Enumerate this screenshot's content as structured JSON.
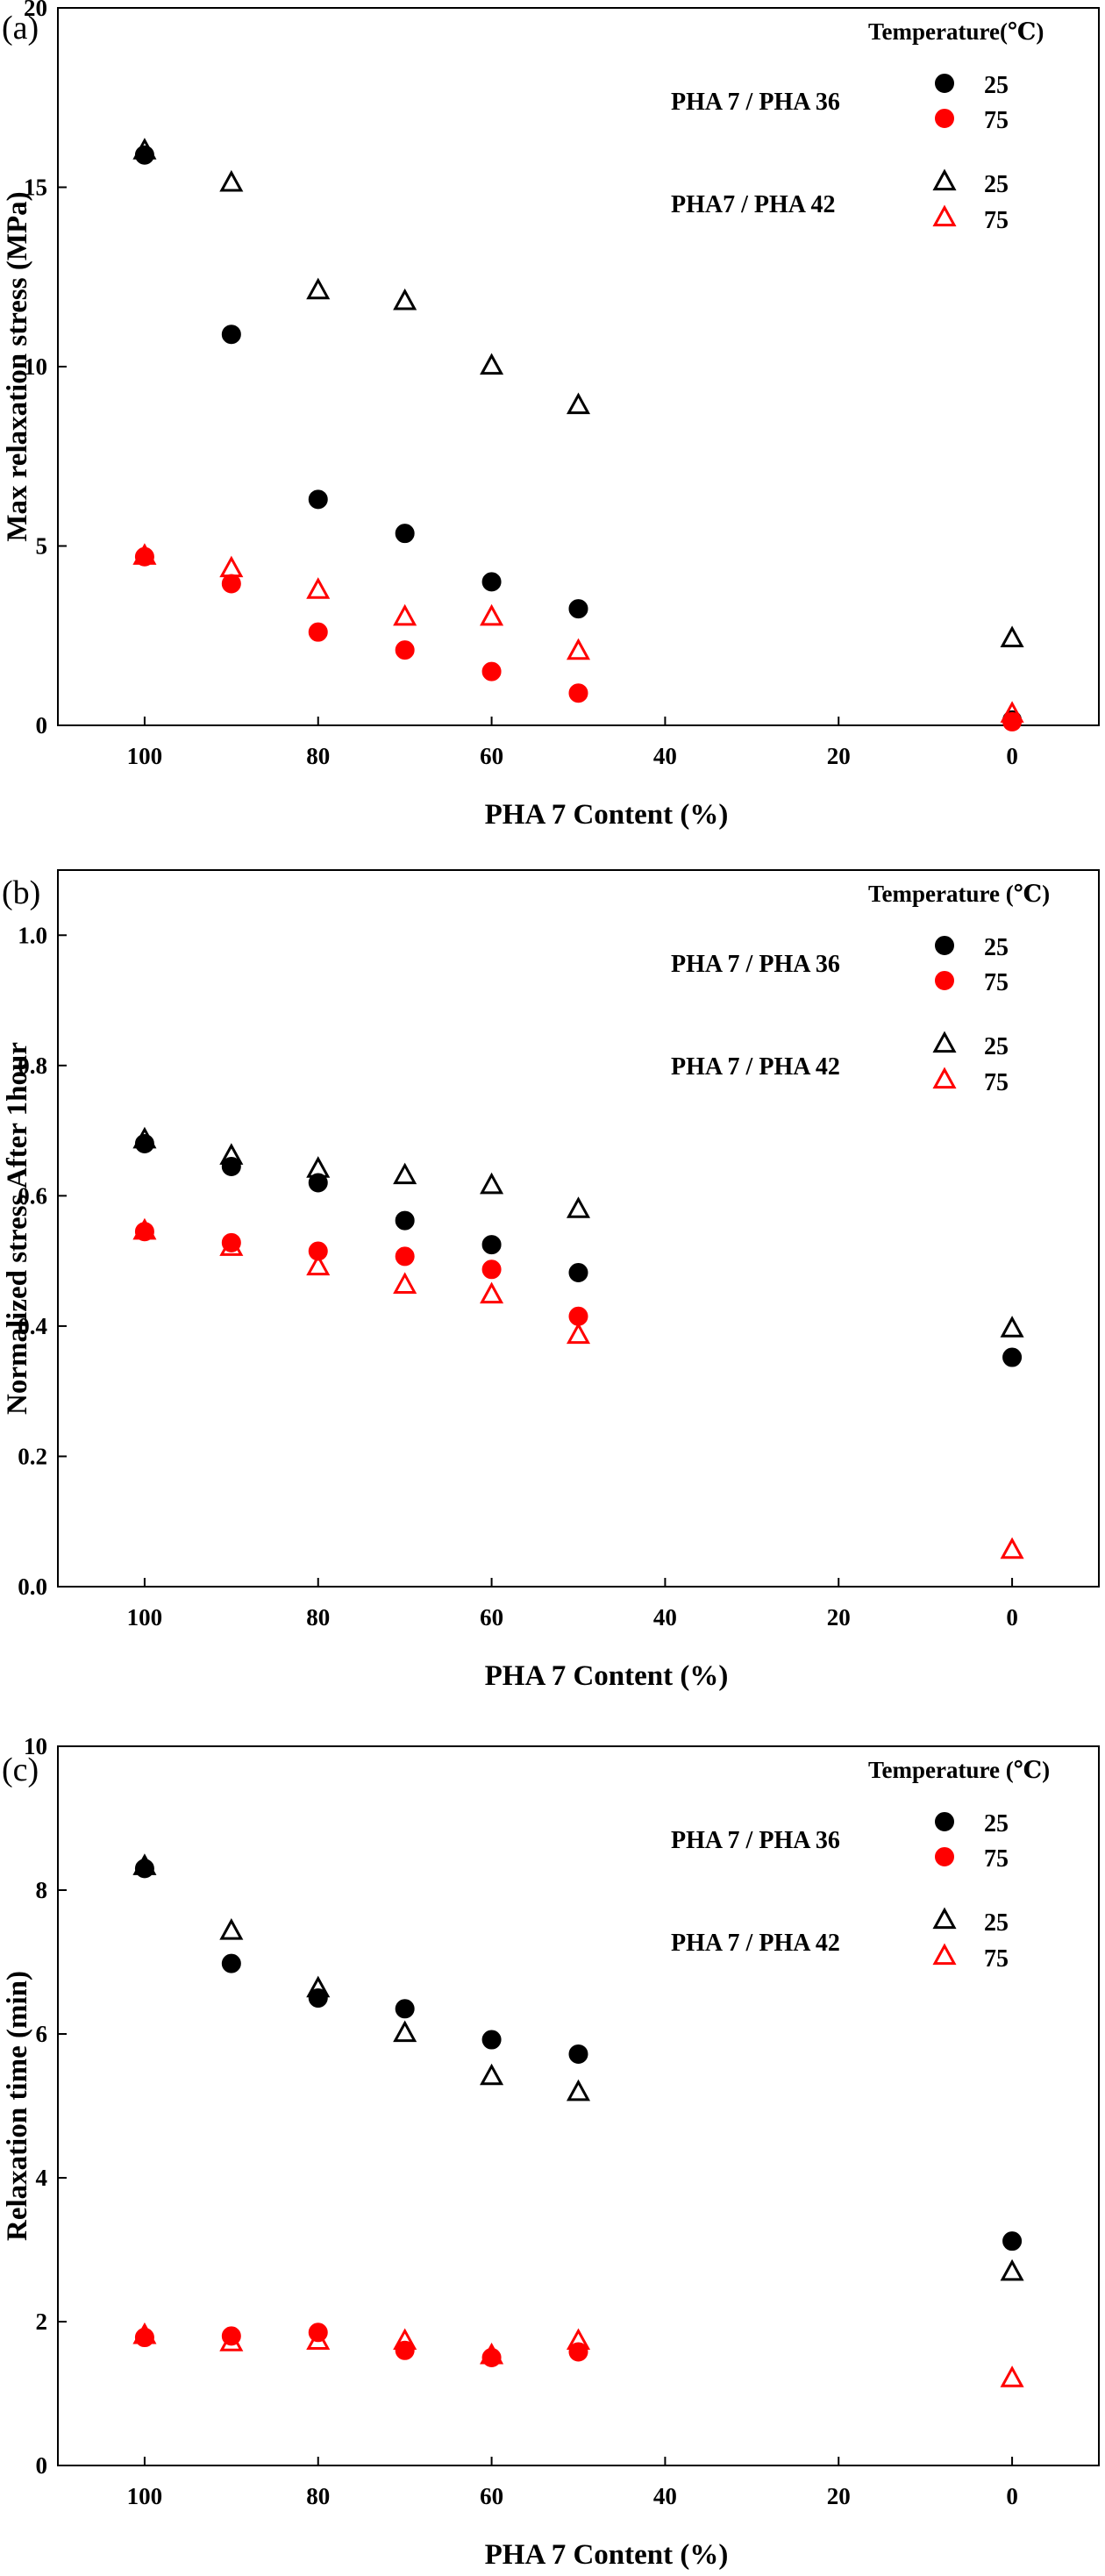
{
  "chart_data": [
    {
      "type": "scatter",
      "panel_label": "(a)",
      "xlabel": "PHA 7 Content (%)",
      "ylabel": "Max relaxation stress (MPa)",
      "xlim": [
        110,
        -10
      ],
      "ylim": [
        0,
        20
      ],
      "xticks": [
        "100",
        "80",
        "60",
        "40",
        "20",
        "0"
      ],
      "yticks": [
        "0",
        "5",
        "10",
        "15",
        "20"
      ],
      "legend_title": "Temperature(℃)",
      "legend_groups": [
        "PHA 7 / PHA 36",
        "PHA7 / PHA 42"
      ],
      "series": [
        {
          "name": "25",
          "group": "PHA 7 / PHA 36",
          "marker": "circle",
          "color": "#000000",
          "x": [
            100,
            90,
            80,
            70,
            60,
            50,
            0
          ],
          "y": [
            15.9,
            10.9,
            6.3,
            5.35,
            4.0,
            3.25,
            0.15
          ]
        },
        {
          "name": "75",
          "group": "PHA 7 / PHA 36",
          "marker": "circle",
          "color": "#ff0000",
          "x": [
            100,
            90,
            80,
            70,
            60,
            50,
            0
          ],
          "y": [
            4.7,
            3.95,
            2.6,
            2.1,
            1.5,
            0.9,
            0.1
          ]
        },
        {
          "name": "25",
          "group": "PHA7 / PHA 42",
          "marker": "triangle",
          "color": "#000000",
          "x": [
            100,
            90,
            80,
            70,
            60,
            50,
            0
          ],
          "y": [
            16.0,
            15.1,
            12.1,
            11.8,
            10.0,
            8.9,
            2.4
          ]
        },
        {
          "name": "75",
          "group": "PHA7 / PHA 42",
          "marker": "triangle",
          "color": "#ff0000",
          "x": [
            100,
            90,
            80,
            70,
            60,
            50,
            0
          ],
          "y": [
            4.7,
            4.35,
            3.75,
            3.0,
            3.0,
            2.05,
            0.3
          ]
        }
      ]
    },
    {
      "type": "scatter",
      "panel_label": "(b)",
      "xlabel": "PHA 7 Content (%)",
      "ylabel": "Normalized stress After 1hour",
      "xlim": [
        110,
        -10
      ],
      "ylim": [
        0,
        1.1
      ],
      "xticks": [
        "100",
        "80",
        "60",
        "40",
        "20",
        "0"
      ],
      "yticks": [
        "0.0",
        "0.2",
        "0.4",
        "0.6",
        "0.8",
        "1.0"
      ],
      "legend_title": "Temperature (℃)",
      "legend_groups": [
        "PHA 7 / PHA 36",
        "PHA 7 / PHA 42"
      ],
      "series": [
        {
          "name": "25",
          "group": "PHA 7 / PHA 36",
          "marker": "circle",
          "color": "#000000",
          "x": [
            100,
            90,
            80,
            70,
            60,
            50,
            0
          ],
          "y": [
            0.68,
            0.645,
            0.62,
            0.562,
            0.525,
            0.482,
            0.352
          ]
        },
        {
          "name": "75",
          "group": "PHA 7 / PHA 36",
          "marker": "circle",
          "color": "#ff0000",
          "x": [
            100,
            90,
            80,
            70,
            60,
            50
          ],
          "y": [
            0.545,
            0.528,
            0.515,
            0.507,
            0.487,
            0.415
          ]
        },
        {
          "name": "25",
          "group": "PHA 7 / PHA 42",
          "marker": "triangle",
          "color": "#000000",
          "x": [
            100,
            90,
            80,
            70,
            60,
            50,
            0
          ],
          "y": [
            0.685,
            0.66,
            0.64,
            0.63,
            0.615,
            0.578,
            0.395
          ]
        },
        {
          "name": "75",
          "group": "PHA 7 / PHA 42",
          "marker": "triangle",
          "color": "#ff0000",
          "x": [
            100,
            90,
            80,
            70,
            60,
            50,
            0
          ],
          "y": [
            0.545,
            0.52,
            0.49,
            0.462,
            0.447,
            0.385,
            0.055
          ]
        }
      ]
    },
    {
      "type": "scatter",
      "panel_label": "(c)",
      "xlabel": "PHA 7 Content (%)",
      "ylabel": "Relaxation time (min)",
      "xlim": [
        110,
        -10
      ],
      "ylim": [
        0,
        10
      ],
      "xticks": [
        "100",
        "80",
        "60",
        "40",
        "20",
        "0"
      ],
      "yticks": [
        "0",
        "2",
        "4",
        "6",
        "8",
        "10"
      ],
      "legend_title": "Temperature (℃)",
      "legend_groups": [
        "PHA 7 / PHA 36",
        "PHA 7 / PHA 42"
      ],
      "series": [
        {
          "name": "25",
          "group": "PHA 7 / PHA 36",
          "marker": "circle",
          "color": "#000000",
          "x": [
            100,
            90,
            80,
            70,
            60,
            50,
            0
          ],
          "y": [
            8.3,
            6.98,
            6.5,
            6.35,
            5.92,
            5.72,
            3.12
          ]
        },
        {
          "name": "75",
          "group": "PHA 7 / PHA 36",
          "marker": "circle",
          "color": "#ff0000",
          "x": [
            100,
            90,
            80,
            70,
            60,
            50
          ],
          "y": [
            1.78,
            1.8,
            1.85,
            1.6,
            1.5,
            1.58
          ]
        },
        {
          "name": "25",
          "group": "PHA 7 / PHA 42",
          "marker": "triangle",
          "color": "#000000",
          "x": [
            100,
            90,
            80,
            70,
            60,
            50,
            0
          ],
          "y": [
            8.32,
            7.42,
            6.62,
            6.0,
            5.4,
            5.18,
            2.68
          ]
        },
        {
          "name": "75",
          "group": "PHA 7 / PHA 42",
          "marker": "triangle",
          "color": "#ff0000",
          "x": [
            100,
            90,
            80,
            70,
            60,
            50,
            0
          ],
          "y": [
            1.8,
            1.7,
            1.72,
            1.72,
            1.52,
            1.72,
            1.2
          ]
        }
      ]
    }
  ]
}
